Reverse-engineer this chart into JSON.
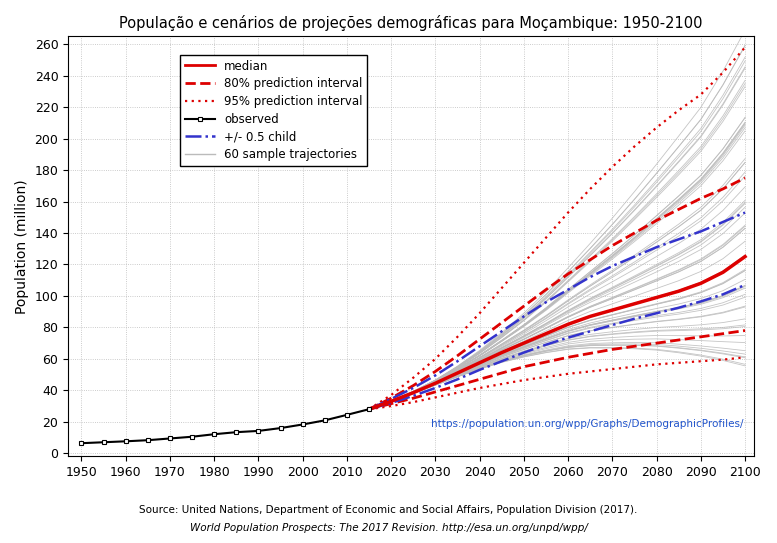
{
  "title": "População e cenários de projeções demográficas para Moçambique: 1950-2100",
  "ylabel": "Population (million)",
  "xlabel": "",
  "xlim": [
    1947,
    2102
  ],
  "ylim": [
    -2,
    265
  ],
  "yticks": [
    0,
    20,
    40,
    60,
    80,
    100,
    120,
    140,
    160,
    180,
    200,
    220,
    240,
    260
  ],
  "xticks": [
    1950,
    1960,
    1970,
    1980,
    1990,
    2000,
    2010,
    2020,
    2030,
    2040,
    2050,
    2060,
    2070,
    2080,
    2090,
    2100
  ],
  "url_text": "https://population.un.org/wpp/Graphs/DemographicProfiles/",
  "source_text": "Source: United Nations, Department of Economic and Social Affairs, Population Division (2017).",
  "source_text2": "World Population Prospects: The 2017 Revision. http://esa.un.org/unpd/wpp/",
  "background_color": "#ffffff",
  "grid_color": "#bbbbbb",
  "observed_years": [
    1950,
    1955,
    1960,
    1965,
    1970,
    1975,
    1980,
    1985,
    1990,
    1995,
    2000,
    2005,
    2010,
    2015
  ],
  "observed_values": [
    6.4,
    7.0,
    7.6,
    8.3,
    9.4,
    10.5,
    12.1,
    13.4,
    14.2,
    16.0,
    18.3,
    20.9,
    24.4,
    28.0
  ],
  "median_years": [
    2015,
    2020,
    2025,
    2030,
    2035,
    2040,
    2045,
    2050,
    2055,
    2060,
    2065,
    2070,
    2075,
    2080,
    2085,
    2090,
    2095,
    2100
  ],
  "median_values": [
    28.0,
    33.0,
    38.5,
    44.5,
    51.0,
    57.5,
    64.0,
    70.0,
    76.0,
    82.0,
    87.0,
    91.0,
    95.0,
    99.0,
    103.0,
    108.0,
    115.0,
    125.0
  ],
  "pi80_upper_years": [
    2015,
    2020,
    2025,
    2030,
    2035,
    2040,
    2045,
    2050,
    2055,
    2060,
    2065,
    2070,
    2075,
    2080,
    2085,
    2090,
    2095,
    2100
  ],
  "pi80_upper_values": [
    28.0,
    35.0,
    43.0,
    52.0,
    62.0,
    72.5,
    83.0,
    93.5,
    104.0,
    114.0,
    123.0,
    132.0,
    140.0,
    148.0,
    155.0,
    162.0,
    168.0,
    175.0
  ],
  "pi80_lower_years": [
    2015,
    2020,
    2025,
    2030,
    2035,
    2040,
    2045,
    2050,
    2055,
    2060,
    2065,
    2070,
    2075,
    2080,
    2085,
    2090,
    2095,
    2100
  ],
  "pi80_lower_values": [
    28.0,
    31.5,
    35.0,
    39.0,
    43.0,
    47.0,
    51.0,
    55.0,
    58.0,
    61.0,
    63.5,
    66.0,
    68.0,
    70.0,
    72.0,
    74.0,
    76.0,
    78.0
  ],
  "pi95_upper_years": [
    2015,
    2020,
    2025,
    2030,
    2035,
    2040,
    2045,
    2050,
    2055,
    2060,
    2065,
    2070,
    2075,
    2080,
    2085,
    2090,
    2095,
    2100
  ],
  "pi95_upper_values": [
    28.0,
    37.0,
    48.0,
    60.0,
    74.0,
    89.0,
    105.0,
    121.0,
    137.0,
    153.0,
    168.0,
    182.0,
    195.0,
    207.0,
    218.0,
    228.0,
    242.0,
    258.0
  ],
  "pi95_lower_years": [
    2015,
    2020,
    2025,
    2030,
    2035,
    2040,
    2045,
    2050,
    2055,
    2060,
    2065,
    2070,
    2075,
    2080,
    2085,
    2090,
    2095,
    2100
  ],
  "pi95_lower_values": [
    28.0,
    30.0,
    32.5,
    35.5,
    38.5,
    41.5,
    44.0,
    46.5,
    48.5,
    50.5,
    52.0,
    53.5,
    55.0,
    56.5,
    57.5,
    58.5,
    59.5,
    61.0
  ],
  "child05_upper_years": [
    2015,
    2020,
    2025,
    2030,
    2035,
    2040,
    2045,
    2050,
    2055,
    2060,
    2065,
    2070,
    2075,
    2080,
    2085,
    2090,
    2095,
    2100
  ],
  "child05_upper_values": [
    28.0,
    34.5,
    41.5,
    49.5,
    58.5,
    68.0,
    77.5,
    87.0,
    96.0,
    104.0,
    112.0,
    119.0,
    125.0,
    131.0,
    136.0,
    141.0,
    147.0,
    153.0
  ],
  "child05_lower_years": [
    2015,
    2020,
    2025,
    2030,
    2035,
    2040,
    2045,
    2050,
    2055,
    2060,
    2065,
    2070,
    2075,
    2080,
    2085,
    2090,
    2095,
    2100
  ],
  "child05_lower_values": [
    28.0,
    32.0,
    36.5,
    41.5,
    47.0,
    53.0,
    58.5,
    64.0,
    69.0,
    73.5,
    77.5,
    81.5,
    85.5,
    89.0,
    92.5,
    96.5,
    101.0,
    107.0
  ],
  "median_color": "#dd0000",
  "pi80_color": "#dd0000",
  "pi95_color": "#dd0000",
  "observed_color": "#000000",
  "child05_color": "#3333cc",
  "trajectory_color": "#bbbbbb",
  "n_trajectories": 60
}
